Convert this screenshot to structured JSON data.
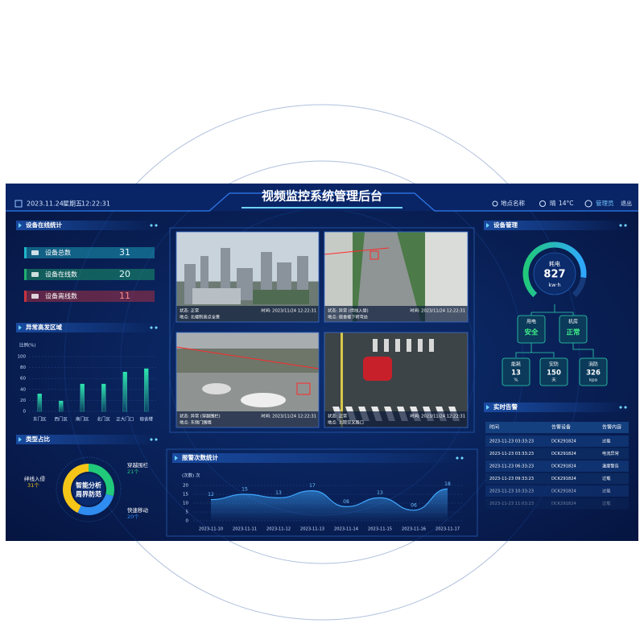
{
  "header": {
    "date": "2023.11.24",
    "weekday": "星期五",
    "time": "12:22:31",
    "title": "视频监控系统管理后台",
    "location": "地点名称",
    "weather": "晴",
    "temperature": "14°C",
    "user": "管理员",
    "logout": "退出"
  },
  "device_stats": {
    "title": "设备在线统计",
    "items": [
      {
        "label": "设备总数",
        "value": 31,
        "color": "#1fb5c9"
      },
      {
        "label": "设备在线数",
        "value": 20,
        "color": "#1fae6f"
      },
      {
        "label": "设备离线数",
        "value": 11,
        "color": "#c8333f"
      }
    ]
  },
  "area_chart": {
    "type": "bar",
    "title": "异常高发区域",
    "y_label": "比例(%)",
    "categories": [
      "东门区",
      "西门区",
      "南门区",
      "北门区",
      "正大门口",
      "宿舍楼"
    ],
    "values": [
      32,
      19,
      50,
      50,
      72,
      78
    ],
    "ylim": [
      0,
      100
    ],
    "yticks": [
      0,
      20,
      40,
      60,
      80,
      100
    ],
    "color": "#2ee6b0"
  },
  "type_chart": {
    "type": "pie",
    "title": "类型占比",
    "center_text": [
      "智能分析",
      "周界防范"
    ],
    "categories": [
      "绊线入侵",
      "穿越围栏",
      "快速移动"
    ],
    "values": [
      31,
      21,
      20
    ],
    "value_labels": [
      "31个",
      "21个",
      "20个"
    ],
    "colors": [
      "#f5c518",
      "#21c97a",
      "#2f8cf0"
    ]
  },
  "videos": [
    {
      "status": "状态: 正常",
      "time": "时间: 2023/11/24 12:22:31",
      "place": "地点: 北楼制高点全景"
    },
    {
      "status": "状态: 异常 (绊线入侵)",
      "time": "时间: 2023/11/24 12:22:31",
      "place": "地点: 宿舍楼下转弯处"
    },
    {
      "status": "状态: 异常 (穿越围栏)",
      "time": "时间: 2023/11/24 12:22:31",
      "place": "地点: 东侧门围墙"
    },
    {
      "status": "状态: 正常",
      "time": "时间: 2023/11/24 12:22:31",
      "place": "地点: 北院交叉路口"
    }
  ],
  "alarm_chart": {
    "type": "line",
    "title": "报警次数统计",
    "y_label": "(次数) 次",
    "categories": [
      "2023-11-10",
      "2023-11-11",
      "2023-11-12",
      "2023-11-13",
      "2023-11-14",
      "2023-11-15",
      "2023-11-16",
      "2023-11-17"
    ],
    "values": [
      12,
      15,
      13,
      17,
      8,
      13,
      6,
      18
    ],
    "value_labels": [
      "12",
      "15",
      "13",
      "17",
      "08",
      "13",
      "06",
      "18"
    ],
    "ylim": [
      0,
      20
    ],
    "yticks": [
      0,
      5,
      10,
      15,
      20
    ],
    "color": "#3fa8ff"
  },
  "device_mgmt": {
    "title": "设备管理",
    "gauge": {
      "label": "耗电",
      "value": "827",
      "unit": "kw·h"
    },
    "nodes": [
      {
        "label": "用电",
        "value": "安全"
      },
      {
        "label": "机房",
        "value": "正常"
      },
      {
        "label": "能耗",
        "value": "13",
        "unit": "%"
      },
      {
        "label": "安防",
        "value": "150",
        "unit": "天"
      },
      {
        "label": "消防",
        "value": "326",
        "unit": "kpa"
      }
    ]
  },
  "alarm_table": {
    "title": "实时告警",
    "columns": [
      "时间",
      "告警设备",
      "告警内容"
    ],
    "rows": [
      [
        "2023-11-23 03:33:23",
        "DCK291824",
        "过载"
      ],
      [
        "2023-11-23 03:33:23",
        "DCK291824",
        "电流异常"
      ],
      [
        "2023-11-23 06:33:23",
        "DCK291824",
        "温度警告"
      ],
      [
        "2023-11-23 09:33:23",
        "DCK291824",
        "过载"
      ],
      [
        "2023-11-23 10:33:23",
        "DCK291824",
        "过载"
      ],
      [
        "2023-11-23 11:03:23",
        "DCK291824",
        "过载"
      ]
    ]
  }
}
